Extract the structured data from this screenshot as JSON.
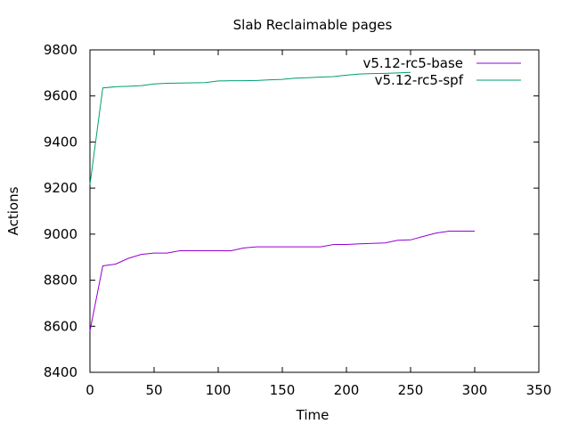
{
  "chart_data": {
    "type": "line",
    "title": "Slab Reclaimable pages",
    "xlabel": "Time",
    "ylabel": "Actions",
    "xlim": [
      0,
      350
    ],
    "ylim": [
      8400,
      9800
    ],
    "xticks": [
      0,
      50,
      100,
      150,
      200,
      250,
      300,
      350
    ],
    "yticks": [
      8400,
      8600,
      8800,
      9000,
      9200,
      9400,
      9600,
      9800
    ],
    "grid": false,
    "legend_position": "top-right",
    "series": [
      {
        "name": "v5.12-rc5-base",
        "color": "#9400d3",
        "x": [
          0,
          10,
          20,
          30,
          40,
          50,
          60,
          70,
          80,
          90,
          100,
          110,
          120,
          130,
          140,
          150,
          160,
          170,
          180,
          190,
          200,
          210,
          220,
          230,
          240,
          250,
          260,
          270,
          280,
          290,
          300
        ],
        "y": [
          8580,
          8862,
          8870,
          8895,
          8912,
          8918,
          8918,
          8928,
          8928,
          8928,
          8928,
          8928,
          8940,
          8945,
          8945,
          8945,
          8945,
          8945,
          8945,
          8955,
          8955,
          8958,
          8960,
          8962,
          8973,
          8975,
          8990,
          9005,
          9013,
          9013,
          9013
        ]
      },
      {
        "name": "v5.12-rc5-spf",
        "color": "#009e73",
        "x": [
          0,
          10,
          20,
          30,
          40,
          50,
          60,
          70,
          80,
          90,
          100,
          110,
          120,
          130,
          140,
          150,
          160,
          170,
          180,
          190,
          200,
          210,
          220,
          230,
          240,
          250
        ],
        "y": [
          9215,
          9635,
          9640,
          9642,
          9645,
          9652,
          9655,
          9656,
          9657,
          9658,
          9665,
          9666,
          9666,
          9667,
          9670,
          9672,
          9677,
          9679,
          9682,
          9684,
          9690,
          9695,
          9697,
          9698,
          9700,
          9702
        ]
      }
    ]
  }
}
